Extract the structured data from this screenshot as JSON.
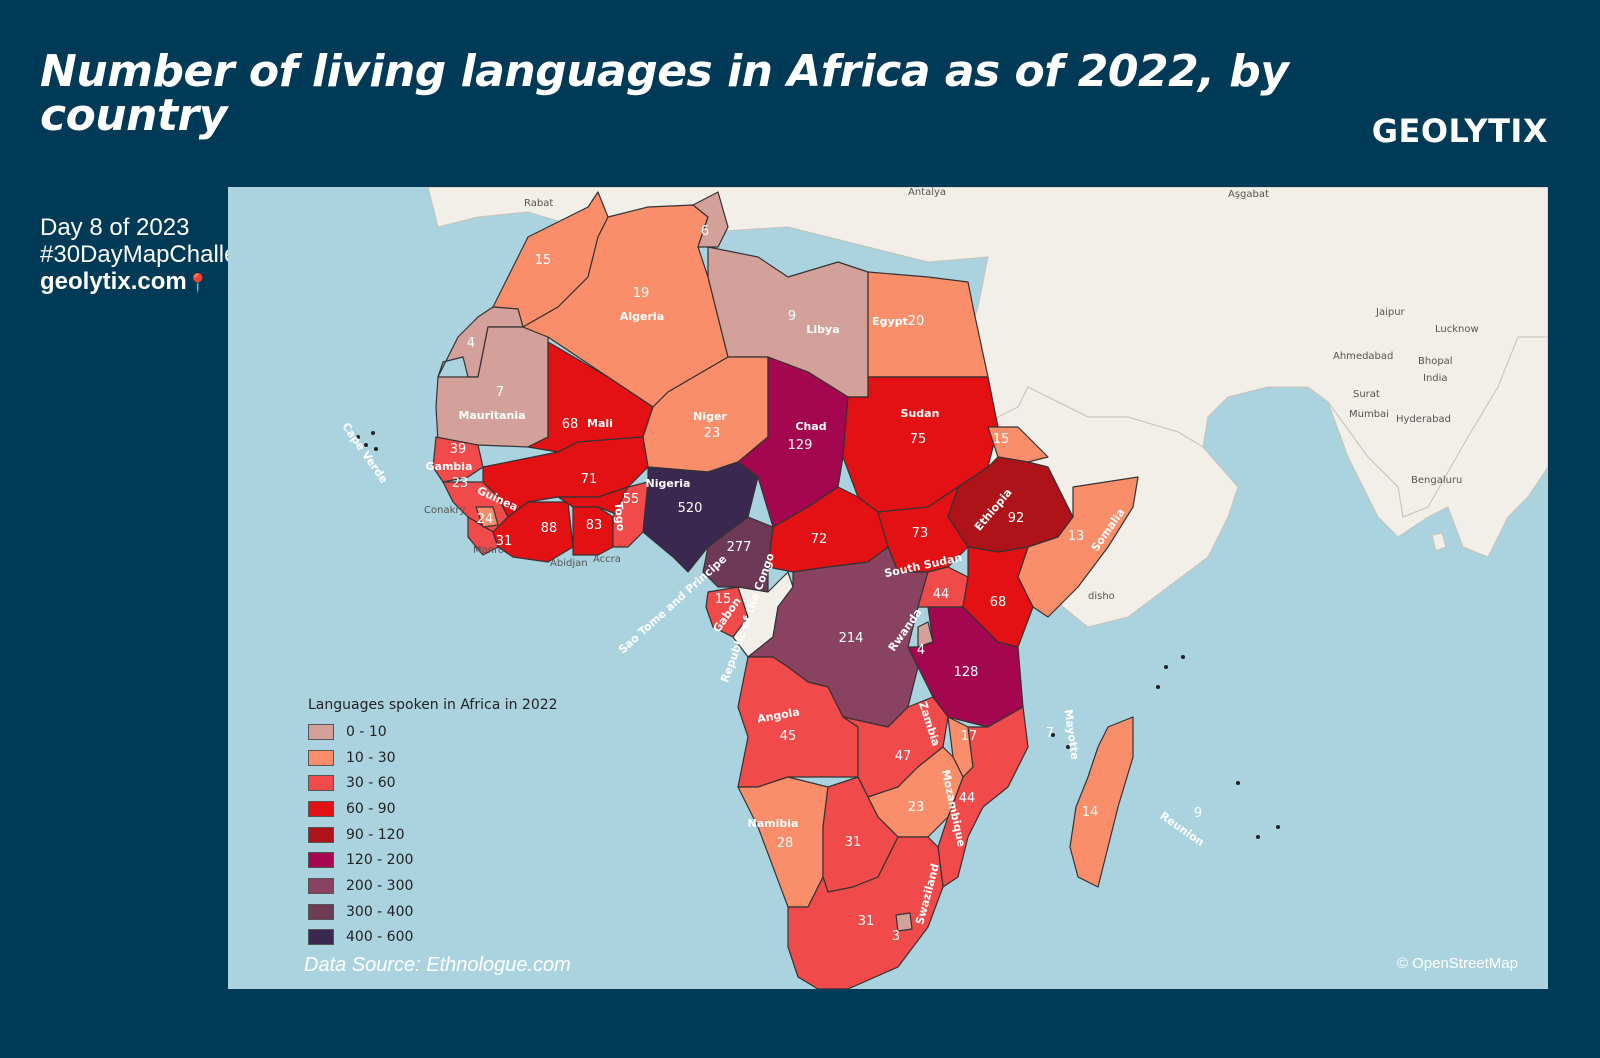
{
  "header": {
    "title": "Number of living languages in Africa as of 2022, by country",
    "brand": "GEOLYTIX"
  },
  "sidebar": {
    "line1": "Day 8 of 2023",
    "line2": "#30DayMapChallenge",
    "site": "geolytix.com"
  },
  "map": {
    "attribution": "© OpenStreetMap",
    "source": "Data Source: Ethnologue.com",
    "ocean_color": "#aad3df",
    "land_color": "#f2efe9",
    "legend": {
      "title": "Languages spoken in Africa in 2022",
      "classes": [
        {
          "label": "0 - 10",
          "color": "#d4a19a"
        },
        {
          "label": "10 - 30",
          "color": "#fb8e6a"
        },
        {
          "label": "30 - 60",
          "color": "#f04a4a"
        },
        {
          "label": "60 - 90",
          "color": "#e31014"
        },
        {
          "label": "90 - 120",
          "color": "#ad1319"
        },
        {
          "label": "120 - 200",
          "color": "#a40650"
        },
        {
          "label": "200 - 300",
          "color": "#8a4261"
        },
        {
          "label": "300 - 400",
          "color": "#6d3957"
        },
        {
          "label": "400 - 600",
          "color": "#3b2850"
        }
      ]
    },
    "countries": [
      {
        "name": "Algeria",
        "value": "19"
      },
      {
        "name": "Libya",
        "value": "9"
      },
      {
        "name": "Egypt",
        "value": "20"
      },
      {
        "name": "Mauritania",
        "value": "7"
      },
      {
        "name": "Mali",
        "value": "68"
      },
      {
        "name": "Niger",
        "value": "23"
      },
      {
        "name": "Chad",
        "value": "129"
      },
      {
        "name": "Sudan",
        "value": "75"
      },
      {
        "name": "Gambia",
        "value": "39"
      },
      {
        "name": "Guinea",
        "value": "24"
      },
      {
        "name": "Togo",
        "value": "55"
      },
      {
        "name": "Nigeria",
        "value": "520"
      },
      {
        "name": "Ethiopia",
        "value": "92"
      },
      {
        "name": "Somalia",
        "value": "13"
      },
      {
        "name": "South Sudan",
        "value": "73"
      },
      {
        "name": "Gabon",
        "value": "15"
      },
      {
        "name": "Rwanda",
        "value": "4"
      },
      {
        "name": "Angola",
        "value": "45"
      },
      {
        "name": "Zambia",
        "value": "47"
      },
      {
        "name": "Mozambique",
        "value": "44"
      },
      {
        "name": "Namibia",
        "value": "28"
      },
      {
        "name": "Swaziland",
        "value": "3"
      },
      {
        "name": "Mayotte",
        "value": "7"
      },
      {
        "name": "Reunion",
        "value": "9"
      },
      {
        "name": "Cape Verde",
        "value": ""
      },
      {
        "name": "Sao Tome and Principe",
        "value": ""
      },
      {
        "name": "Republic of the Congo",
        "value": ""
      }
    ],
    "unnamed_values": [
      {
        "id": "morocco",
        "value": "15"
      },
      {
        "id": "western-sahara",
        "value": "4"
      },
      {
        "id": "tunisia",
        "value": "6"
      },
      {
        "id": "senegal",
        "value": "23"
      },
      {
        "id": "sierra-leone",
        "value": "31"
      },
      {
        "id": "cote-divoire",
        "value": "88"
      },
      {
        "id": "ghana",
        "value": "83"
      },
      {
        "id": "burkina-faso",
        "value": "71"
      },
      {
        "id": "cameroon",
        "value": "277"
      },
      {
        "id": "car",
        "value": "72"
      },
      {
        "id": "eritrea",
        "value": "15"
      },
      {
        "id": "uganda",
        "value": "44"
      },
      {
        "id": "kenya",
        "value": "68"
      },
      {
        "id": "drc",
        "value": "214"
      },
      {
        "id": "tanzania",
        "value": "128"
      },
      {
        "id": "malawi",
        "value": "17"
      },
      {
        "id": "mozambique-2",
        "value": "44"
      },
      {
        "id": "zimbabwe",
        "value": "23"
      },
      {
        "id": "botswana",
        "value": "31"
      },
      {
        "id": "south-africa",
        "value": "31"
      },
      {
        "id": "madagascar",
        "value": "14"
      }
    ],
    "places": [
      {
        "id": "rabat",
        "label": "Rabat"
      },
      {
        "id": "antalya",
        "label": "Antalya"
      },
      {
        "id": "asgabat",
        "label": "Aşgabat"
      },
      {
        "id": "conakry",
        "label": "Conakry"
      },
      {
        "id": "monrovia",
        "label": "Monro"
      },
      {
        "id": "abidjan",
        "label": "Abidjan"
      },
      {
        "id": "accra",
        "label": "Accra"
      },
      {
        "id": "lucknow",
        "label": "Lucknow"
      },
      {
        "id": "ahmedabad",
        "label": "Ahmedabad"
      },
      {
        "id": "bhopal",
        "label": "Bhopal"
      },
      {
        "id": "india",
        "label": "India"
      },
      {
        "id": "surat",
        "label": "Surat"
      },
      {
        "id": "mumbai",
        "label": "Mumbai"
      },
      {
        "id": "hyderabad",
        "label": "Hyderabad"
      },
      {
        "id": "bengaluru",
        "label": "Bengaluru"
      },
      {
        "id": "jaipur",
        "label": "Jaipur"
      },
      {
        "id": "mogadishu",
        "label": "disho"
      }
    ]
  }
}
